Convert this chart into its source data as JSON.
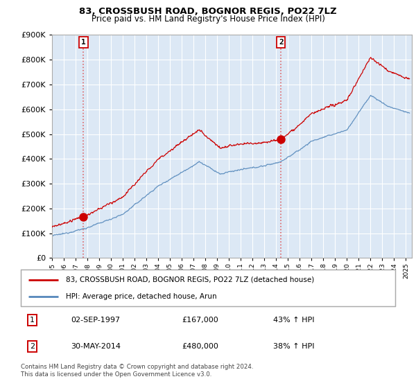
{
  "title1": "83, CROSSBUSH ROAD, BOGNOR REGIS, PO22 7LZ",
  "title2": "Price paid vs. HM Land Registry's House Price Index (HPI)",
  "legend1": "83, CROSSBUSH ROAD, BOGNOR REGIS, PO22 7LZ (detached house)",
  "legend2": "HPI: Average price, detached house, Arun",
  "purchase1_date": "02-SEP-1997",
  "purchase1_price": 167000,
  "purchase1_label": "43% ↑ HPI",
  "purchase1_year": 1997.67,
  "purchase2_date": "30-MAY-2014",
  "purchase2_price": 480000,
  "purchase2_label": "38% ↑ HPI",
  "purchase2_year": 2014.41,
  "footer": "Contains HM Land Registry data © Crown copyright and database right 2024.\nThis data is licensed under the Open Government Licence v3.0.",
  "red_color": "#cc0000",
  "blue_color": "#5588bb",
  "bg_color": "#dce8f5",
  "ylim_max": 900,
  "xlim_start": 1995.0,
  "xlim_end": 2025.5
}
